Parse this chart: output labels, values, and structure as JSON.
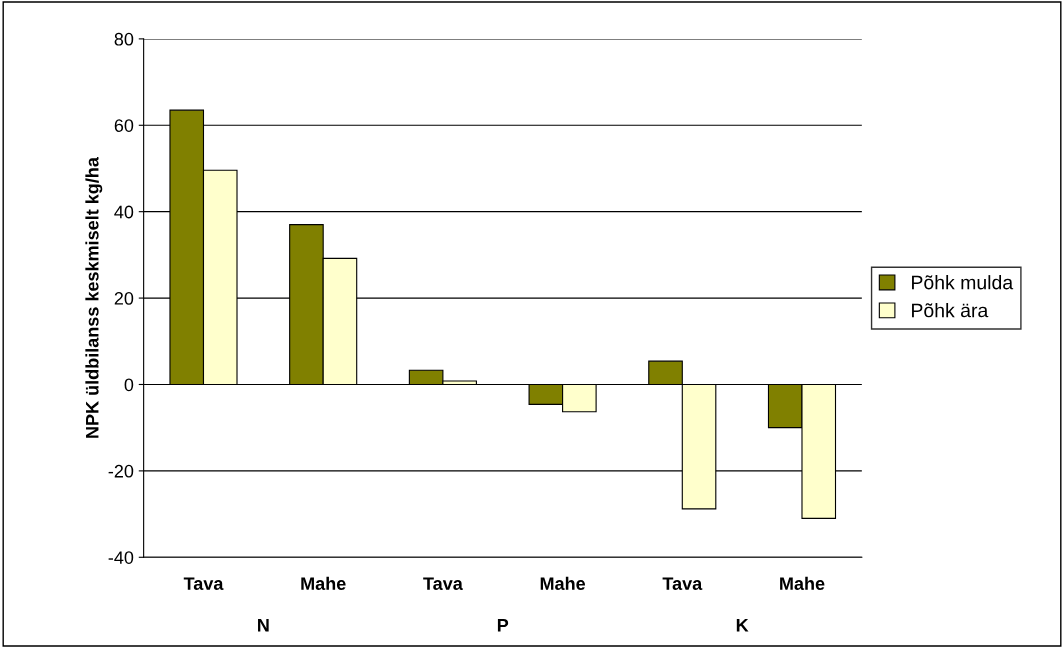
{
  "chart_data": {
    "type": "bar",
    "categories": [
      "Tava",
      "Mahe",
      "Tava",
      "Mahe",
      "Tava",
      "Mahe"
    ],
    "series": [
      {
        "name": "Põhk mulda",
        "color": "#808000",
        "values": [
          63.5,
          37,
          3.3,
          -4.6,
          5.4,
          -10
        ]
      },
      {
        "name": "Põhk ära",
        "color": "#ffffcc",
        "values": [
          49.6,
          29.2,
          0.8,
          -6.3,
          -28.8,
          -31
        ]
      }
    ],
    "annotations": [
      "N",
      "P",
      "K"
    ],
    "ylabel": "NPK üldbilanss keskmiselt kg/ha",
    "ylim": [
      -40,
      80
    ],
    "yticks": [
      -40,
      -20,
      0,
      20,
      40,
      60,
      80
    ],
    "grid": "y",
    "legend": "right"
  }
}
